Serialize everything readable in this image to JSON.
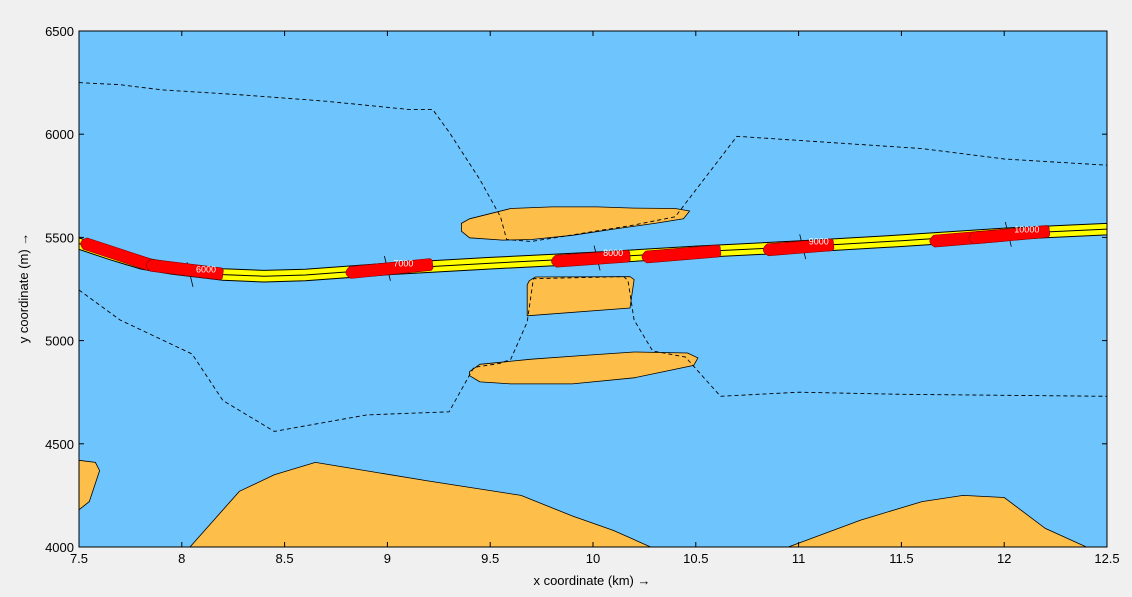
{
  "chart_data": {
    "type": "map-plot",
    "title": "",
    "xlabel": "x coordinate (km) →",
    "ylabel": "y coordinate (m) →",
    "xlim": [
      7.5,
      12.5
    ],
    "ylim": [
      4000,
      6500
    ],
    "xticks": [
      7.5,
      8,
      8.5,
      9,
      9.5,
      10,
      10.5,
      11,
      11.5,
      12,
      12.5
    ],
    "xtick_labels": [
      "7.5",
      "8",
      "8.5",
      "9",
      "9.5",
      "10",
      "10.5",
      "11",
      "11.5",
      "12",
      "12.5"
    ],
    "yticks": [
      4000,
      4500,
      5000,
      5500,
      6000,
      6500
    ],
    "ytick_labels": [
      "4000",
      "4500",
      "5000",
      "5500",
      "6000",
      "6500"
    ],
    "grid": false,
    "colors": {
      "water": "#6ec4fc",
      "land": "#fdbf4a",
      "fairway": "#ffff00",
      "ship": "#ff0000",
      "line": "#000000",
      "frame": "#f0f0f0"
    },
    "land_areas": [
      {
        "name": "island-north",
        "points": [
          [
            9.36,
            5568
          ],
          [
            9.4,
            5590
          ],
          [
            9.6,
            5640
          ],
          [
            9.8,
            5648
          ],
          [
            10.02,
            5648
          ],
          [
            10.2,
            5642
          ],
          [
            10.4,
            5640
          ],
          [
            10.47,
            5628
          ],
          [
            10.44,
            5590
          ],
          [
            10.3,
            5568
          ],
          [
            10.1,
            5540
          ],
          [
            9.9,
            5510
          ],
          [
            9.7,
            5490
          ],
          [
            9.56,
            5487
          ],
          [
            9.4,
            5498
          ],
          [
            9.36,
            5530
          ]
        ]
      },
      {
        "name": "island-middle",
        "points": [
          [
            9.69,
            5290
          ],
          [
            9.72,
            5308
          ],
          [
            10.18,
            5310
          ],
          [
            10.2,
            5296
          ],
          [
            10.18,
            5158
          ],
          [
            9.68,
            5120
          ],
          [
            9.68,
            5270
          ]
        ]
      },
      {
        "name": "island-south",
        "points": [
          [
            9.4,
            4850
          ],
          [
            9.45,
            4885
          ],
          [
            9.7,
            4910
          ],
          [
            9.95,
            4928
          ],
          [
            10.2,
            4945
          ],
          [
            10.46,
            4940
          ],
          [
            10.51,
            4916
          ],
          [
            10.49,
            4880
          ],
          [
            10.2,
            4820
          ],
          [
            9.9,
            4790
          ],
          [
            9.6,
            4790
          ],
          [
            9.45,
            4800
          ],
          [
            9.4,
            4830
          ]
        ]
      },
      {
        "name": "bank-south-left",
        "points": [
          [
            7.5,
            4180
          ],
          [
            7.55,
            4220
          ],
          [
            7.6,
            4370
          ],
          [
            7.58,
            4410
          ],
          [
            7.5,
            4420
          ]
        ]
      },
      {
        "name": "bank-south-main",
        "points": [
          [
            8.04,
            4000
          ],
          [
            8.28,
            4270
          ],
          [
            8.45,
            4350
          ],
          [
            8.65,
            4410
          ],
          [
            9.2,
            4320
          ],
          [
            9.65,
            4250
          ],
          [
            9.9,
            4150
          ],
          [
            10.1,
            4080
          ],
          [
            10.28,
            4000
          ]
        ]
      },
      {
        "name": "bank-south-right",
        "points": [
          [
            10.95,
            4000
          ],
          [
            11.3,
            4130
          ],
          [
            11.6,
            4220
          ],
          [
            11.8,
            4250
          ],
          [
            12.0,
            4240
          ],
          [
            12.2,
            4090
          ],
          [
            12.4,
            4000
          ]
        ]
      }
    ],
    "depth_contours": [
      {
        "name": "contour-north",
        "points": [
          [
            7.5,
            6250
          ],
          [
            7.7,
            6240
          ],
          [
            7.9,
            6215
          ],
          [
            8.3,
            6190
          ],
          [
            8.7,
            6160
          ],
          [
            9.1,
            6120
          ],
          [
            9.22,
            6120
          ],
          [
            9.3,
            6010
          ],
          [
            9.45,
            5780
          ],
          [
            9.55,
            5600
          ],
          [
            9.58,
            5490
          ],
          [
            9.7,
            5480
          ],
          [
            10.2,
            5560
          ],
          [
            10.4,
            5600
          ],
          [
            10.6,
            5860
          ],
          [
            10.7,
            5990
          ],
          [
            11.0,
            5970
          ],
          [
            11.6,
            5930
          ],
          [
            12.0,
            5880
          ],
          [
            12.5,
            5850
          ]
        ]
      },
      {
        "name": "contour-south",
        "points": [
          [
            7.5,
            5245
          ],
          [
            7.7,
            5100
          ],
          [
            8.05,
            4935
          ],
          [
            8.2,
            4710
          ],
          [
            8.45,
            4560
          ],
          [
            8.9,
            4640
          ],
          [
            9.3,
            4655
          ],
          [
            9.42,
            4870
          ],
          [
            9.55,
            4890
          ],
          [
            9.6,
            4910
          ],
          [
            9.68,
            5090
          ],
          [
            9.71,
            5300
          ],
          [
            10.15,
            5310
          ],
          [
            10.17,
            5290
          ],
          [
            10.2,
            5100
          ],
          [
            10.29,
            4950
          ],
          [
            10.45,
            4920
          ],
          [
            10.62,
            4730
          ],
          [
            11.0,
            4750
          ],
          [
            11.5,
            4740
          ],
          [
            12.5,
            4730
          ]
        ]
      }
    ],
    "fairway": {
      "centerline": [
        [
          7.5,
          5470
        ],
        [
          7.65,
          5420
        ],
        [
          7.8,
          5375
        ],
        [
          7.95,
          5350
        ],
        [
          8.2,
          5320
        ],
        [
          8.4,
          5312
        ],
        [
          8.6,
          5318
        ],
        [
          9.0,
          5347
        ],
        [
          9.5,
          5375
        ],
        [
          10.0,
          5400
        ],
        [
          10.5,
          5430
        ],
        [
          11.0,
          5455
        ],
        [
          11.5,
          5484
        ],
        [
          12.0,
          5517
        ],
        [
          12.5,
          5540
        ]
      ],
      "half_width": 28
    },
    "ships": [
      {
        "name": "ship-1",
        "from": [
          7.53,
          5470
        ],
        "to": [
          7.85,
          5365
        ]
      },
      {
        "name": "ship-2",
        "from": [
          7.85,
          5365
        ],
        "to": [
          8.2,
          5322
        ]
      },
      {
        "name": "ship-3",
        "from": [
          8.82,
          5330
        ],
        "to": [
          9.22,
          5370
        ]
      },
      {
        "name": "ship-4",
        "from": [
          9.82,
          5385
        ],
        "to": [
          10.18,
          5410
        ]
      },
      {
        "name": "ship-5",
        "from": [
          10.26,
          5405
        ],
        "to": [
          10.62,
          5435
        ]
      },
      {
        "name": "ship-6",
        "from": [
          10.85,
          5440
        ],
        "to": [
          11.17,
          5465
        ]
      },
      {
        "name": "ship-7",
        "from": [
          11.66,
          5482
        ],
        "to": [
          12.02,
          5512
        ]
      },
      {
        "name": "ship-8",
        "from": [
          11.85,
          5497
        ],
        "to": [
          12.22,
          5530
        ]
      }
    ],
    "chainage_marks": [
      {
        "label": "6000",
        "x": 8.04,
        "y": 5320,
        "half_len": 60
      },
      {
        "label": "7000",
        "x": 9.0,
        "y": 5350,
        "half_len": 60
      },
      {
        "label": "8000",
        "x": 10.02,
        "y": 5400,
        "half_len": 60
      },
      {
        "label": "9000",
        "x": 11.02,
        "y": 5455,
        "half_len": 60
      },
      {
        "label": "10000",
        "x": 12.02,
        "y": 5515,
        "half_len": 60
      }
    ]
  }
}
